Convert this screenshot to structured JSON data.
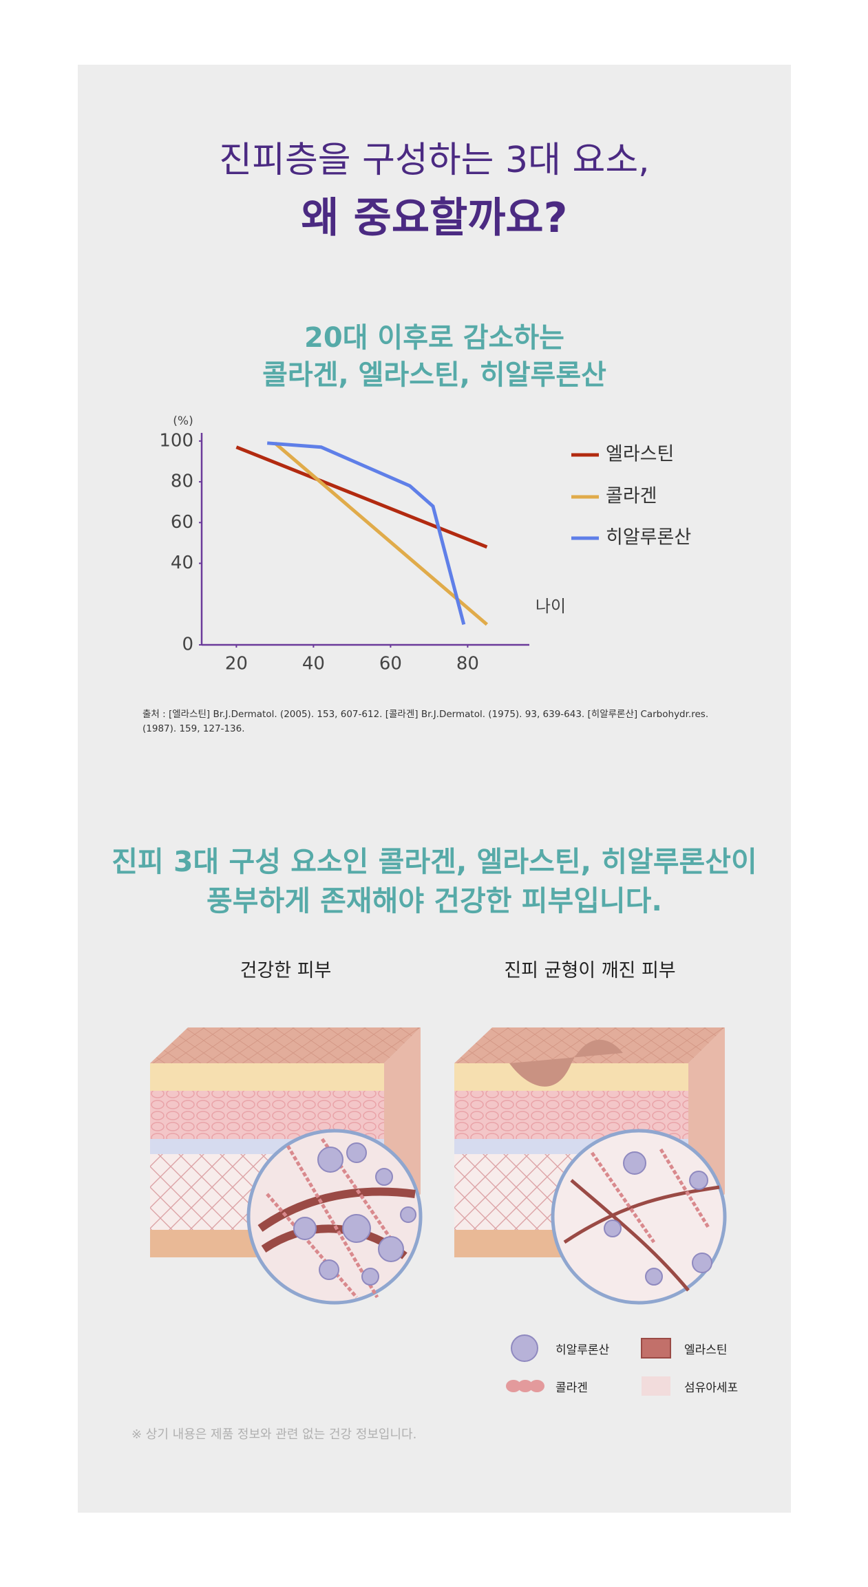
{
  "header": {
    "title_line1": "진피층을 구성하는 3대 요소,",
    "title_line2": "왜 중요할까요?"
  },
  "chart_data": {
    "type": "line",
    "title": [
      "20대 이후로 감소하는",
      "콜라겐, 엘라스틴, 히알루론산"
    ],
    "y_unit": "(%)",
    "x_label": "나이",
    "xlim": [
      11,
      96
    ],
    "ylim": [
      0,
      104
    ],
    "xticks": [
      20,
      40,
      60,
      80
    ],
    "yticks": [
      0,
      40,
      60,
      80,
      100
    ],
    "legend": "right",
    "series": [
      {
        "name": "엘라스틴",
        "color": "#b22a10",
        "x": [
          20,
          85
        ],
        "values": [
          97,
          48
        ]
      },
      {
        "name": "콜라겐",
        "color": "#e0ab4a",
        "x": [
          30,
          85
        ],
        "values": [
          99,
          10
        ]
      },
      {
        "name": "히알루론산",
        "color": "#5f7fe8",
        "x": [
          28,
          42,
          65,
          71,
          79
        ],
        "values": [
          99,
          97,
          78,
          68,
          10
        ]
      }
    ],
    "source": "출처 : [엘라스틴] Br.J.Dermatol. (2005). 153, 607-612. [콜라겐] Br.J.Dermatol. (1975). 93, 639-643. [히알루론산] Carbohydr.res. (1987). 159, 127-136."
  },
  "section": {
    "title_line1": "진피 3대 구성 요소인 콜라겐, 엘라스틴, 히알루론산이",
    "title_line2": "풍부하게 존재해야 건강한 피부입니다.",
    "panels": [
      "건강한 피부",
      "진피 균형이 깨진 피부"
    ],
    "legend": [
      "히알루론산",
      "엘라스틴",
      "콜라겐",
      "섬유아세포"
    ]
  },
  "footnote": "※ 상기 내용은 제품 정보와 관련 없는 건강 정보입니다."
}
